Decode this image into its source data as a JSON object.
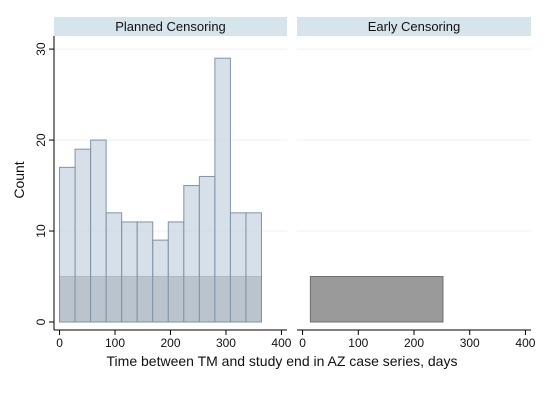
{
  "chart_data": {
    "type": "bar",
    "ylabel": "Count",
    "xlabel": "Time between TM and study end in AZ case series, days",
    "xlim": [
      -10,
      410
    ],
    "ylim": [
      0,
      31
    ],
    "x_ticks": [
      0,
      100,
      200,
      300,
      400
    ],
    "y_ticks": [
      0,
      10,
      20,
      30
    ],
    "grid": true,
    "colors": {
      "histogram_fill": "#c7d4e1",
      "histogram_edge": "#7f93a8",
      "range_fill": "#9a9a9a",
      "range_edge": "#6f6f6f",
      "strip_fill": "#d6e4ec",
      "gridline": "#eef2f5"
    },
    "panels": [
      {
        "title": "Planned Censoring",
        "histogram": {
          "bin_edges": [
            0,
            28,
            56,
            84,
            112,
            140,
            168,
            196,
            224,
            252,
            280,
            308,
            336,
            364
          ],
          "counts": [
            17,
            19,
            20,
            12,
            11,
            11,
            9,
            11,
            15,
            16,
            29,
            12,
            12
          ]
        },
        "range_bar": {
          "x_start": 0,
          "x_end": 364,
          "height": 5
        }
      },
      {
        "title": "Early Censoring",
        "histogram": {
          "bin_edges": [],
          "counts": []
        },
        "range_bar": {
          "x_start": 14,
          "x_end": 252,
          "height": 5
        }
      }
    ]
  }
}
